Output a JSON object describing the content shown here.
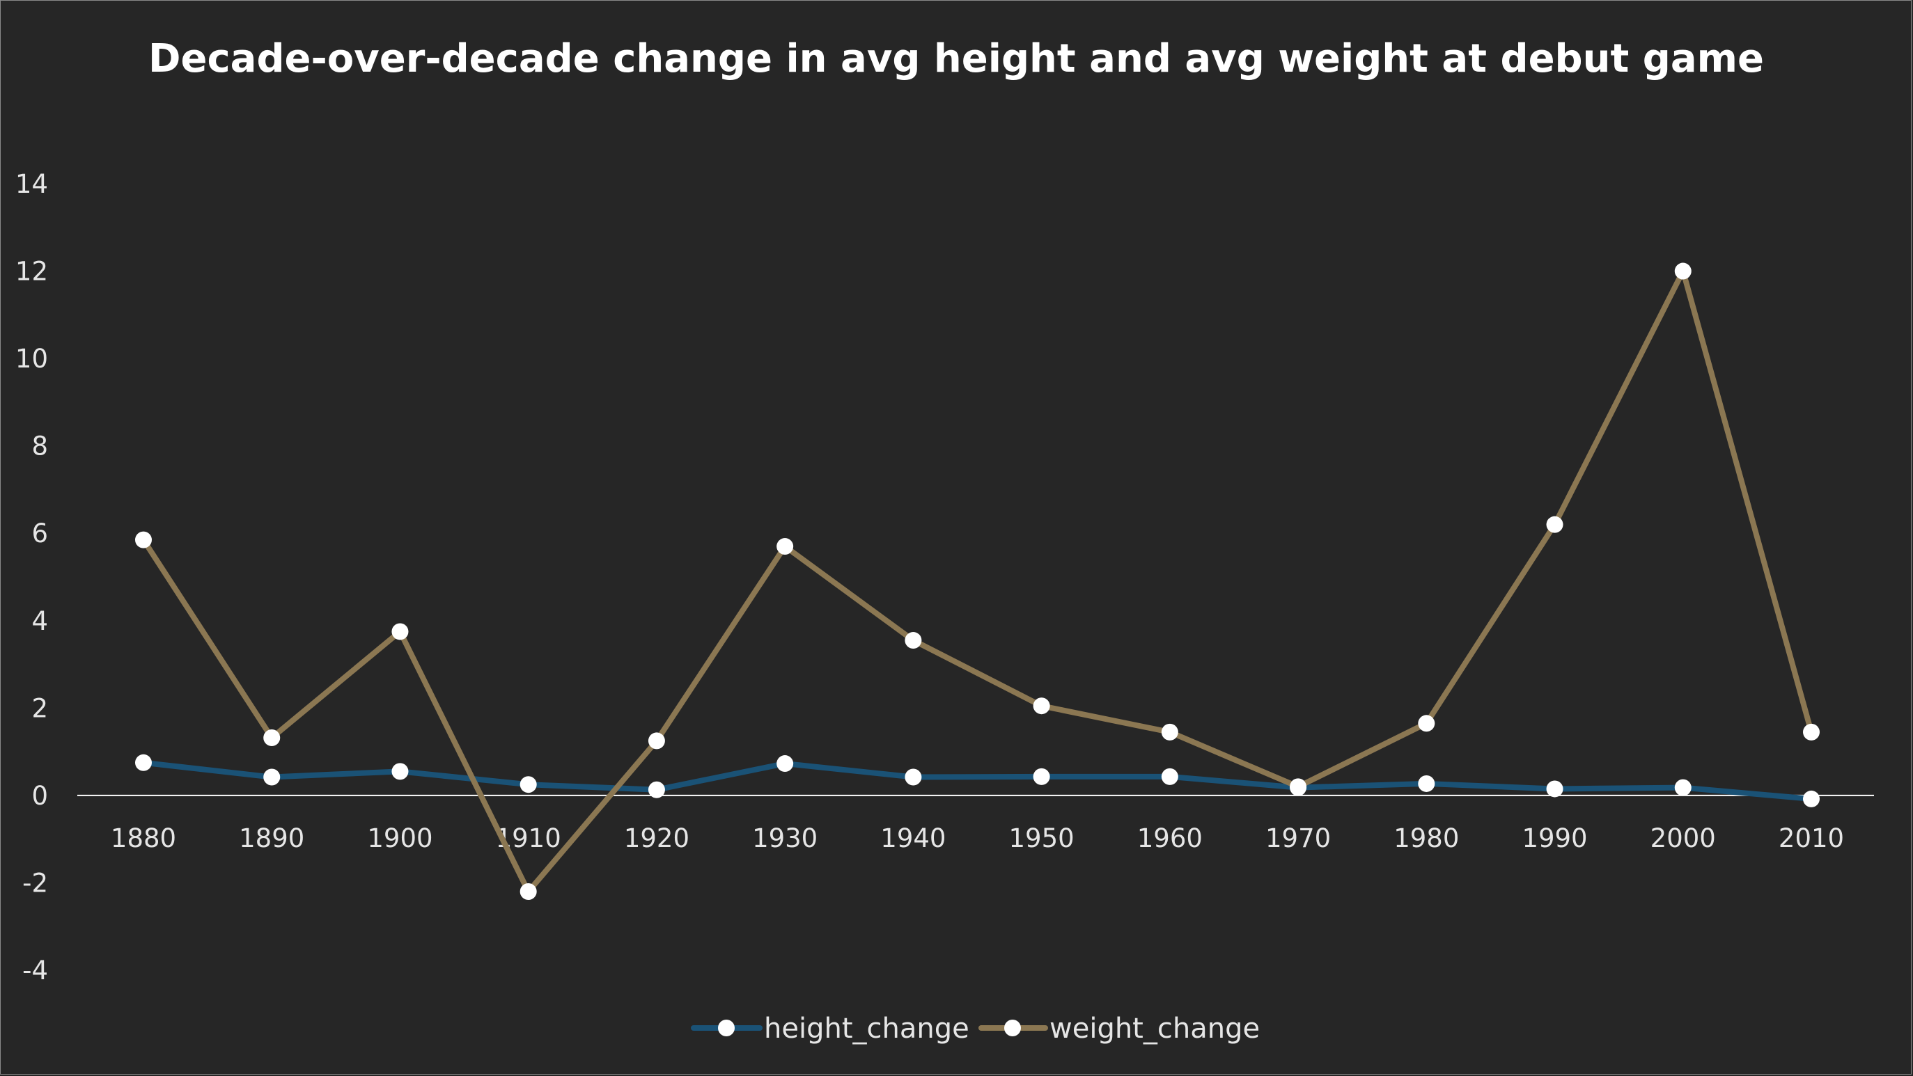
{
  "chart_data": {
    "type": "line",
    "title": "Decade-over-decade change in avg height and avg weight at debut game",
    "xlabel": "",
    "ylabel": "",
    "categories": [
      "1880",
      "1890",
      "1900",
      "1910",
      "1920",
      "1930",
      "1940",
      "1950",
      "1960",
      "1970",
      "1980",
      "1990",
      "2000",
      "2010"
    ],
    "ylim": [
      -4,
      14
    ],
    "yticks": [
      14,
      12,
      10,
      8,
      6,
      4,
      2,
      0,
      -2,
      -4
    ],
    "grid": false,
    "legend_position": "bottom",
    "series": [
      {
        "name": "height_change",
        "color": "#1a5276",
        "values": [
          0.75,
          0.42,
          0.55,
          0.25,
          0.13,
          0.73,
          0.42,
          0.43,
          0.43,
          0.18,
          0.27,
          0.15,
          0.18,
          -0.08
        ]
      },
      {
        "name": "weight_change",
        "color": "#8b7752",
        "values": [
          5.85,
          1.32,
          3.75,
          -2.2,
          1.25,
          5.7,
          3.55,
          2.05,
          1.45,
          0.2,
          1.65,
          6.2,
          12.0,
          1.45
        ]
      }
    ],
    "marker_color": "#ffffff",
    "background": "#262626",
    "text_color": "#ffffff"
  }
}
